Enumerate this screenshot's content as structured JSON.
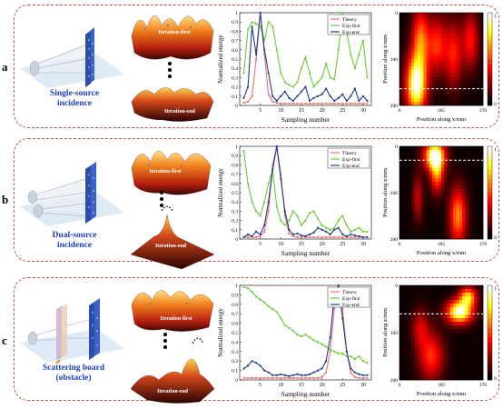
{
  "panels": [
    {
      "label": "a",
      "incidence": [
        "Single-source",
        "incidence"
      ],
      "iter_first": "Iteration-first",
      "iter_end": "Iteration-end"
    },
    {
      "label": "b",
      "incidence": [
        "Dual-source",
        "incidence"
      ],
      "iter_first": "Iteration-first",
      "iter_end": "Iteration-end"
    },
    {
      "label": "c",
      "incidence": [
        "Scattering board",
        "(obstacle)"
      ],
      "iter_first": "Iteration-first",
      "iter_end": "Iteration-end"
    }
  ],
  "colors": {
    "theory": "#e8736b",
    "exp_first": "#6ccb3a",
    "exp_end": "#1f3a8a",
    "border": "#c0504d",
    "incidence_text": "#1f3fbf"
  },
  "chart_data": [
    {
      "type": "line",
      "xlabel": "Sampling number",
      "ylabel": "Normalized energy",
      "xlim": [
        0,
        32
      ],
      "ylim": [
        0,
        1
      ],
      "xticks": [
        "5",
        "10",
        "15",
        "20",
        "25",
        "30"
      ],
      "yticks": [
        "0",
        "0.1",
        "0.2",
        "0.3",
        "0.4",
        "0.5",
        "0.6",
        "0.7",
        "0.8",
        "0.9",
        "1"
      ],
      "legend_position": "top-right",
      "series": [
        {
          "name": "Theory",
          "x": [
            1,
            2,
            3,
            4,
            5,
            6,
            7,
            8,
            9,
            10,
            11,
            12,
            13,
            14,
            15,
            16,
            17,
            18,
            19,
            20,
            21,
            22,
            23,
            24,
            25,
            26,
            27,
            28,
            29,
            30,
            31
          ],
          "values": [
            0.03,
            0.04,
            0.1,
            0.5,
            1.0,
            0.55,
            0.12,
            0.04,
            0.03,
            0.02,
            0.02,
            0.02,
            0.02,
            0.02,
            0.02,
            0.02,
            0.02,
            0.02,
            0.02,
            0.02,
            0.02,
            0.02,
            0.02,
            0.02,
            0.02,
            0.02,
            0.02,
            0.02,
            0.02,
            0.02,
            0.02
          ]
        },
        {
          "name": "Exp-first",
          "x": [
            1,
            2,
            3,
            4,
            5,
            6,
            7,
            8,
            9,
            10,
            11,
            12,
            13,
            14,
            15,
            16,
            17,
            18,
            19,
            20,
            21,
            22,
            23,
            24,
            25,
            26,
            27,
            28,
            29,
            30,
            31
          ],
          "values": [
            0.35,
            0.82,
            0.9,
            0.88,
            0.85,
            0.7,
            0.9,
            0.85,
            0.6,
            0.35,
            0.25,
            0.22,
            0.2,
            0.25,
            0.4,
            0.52,
            0.35,
            0.2,
            0.25,
            0.3,
            0.45,
            0.3,
            0.28,
            0.6,
            1.0,
            0.8,
            0.55,
            0.4,
            0.55,
            0.7,
            0.3
          ]
        },
        {
          "name": "Exp-end",
          "x": [
            1,
            2,
            3,
            4,
            5,
            6,
            7,
            8,
            9,
            10,
            11,
            12,
            13,
            14,
            15,
            16,
            17,
            18,
            19,
            20,
            21,
            22,
            23,
            24,
            25,
            26,
            27,
            28,
            29,
            30,
            31
          ],
          "values": [
            0.08,
            0.2,
            0.85,
            0.55,
            1.0,
            0.6,
            0.35,
            0.1,
            0.05,
            0.1,
            0.15,
            0.08,
            0.05,
            0.1,
            0.15,
            0.2,
            0.05,
            0.08,
            0.1,
            0.12,
            0.18,
            0.1,
            0.05,
            0.08,
            0.12,
            0.05,
            0.1,
            0.18,
            0.05,
            0.1,
            0.05
          ]
        }
      ]
    },
    {
      "type": "line",
      "xlabel": "Sampling number",
      "ylabel": "Normalized energy",
      "xlim": [
        0,
        32
      ],
      "ylim": [
        0,
        1
      ],
      "xticks": [
        "5",
        "10",
        "15",
        "20",
        "25",
        "30"
      ],
      "yticks": [
        "0",
        "0.1",
        "0.2",
        "0.3",
        "0.4",
        "0.5",
        "0.6",
        "0.7",
        "0.8",
        "0.9",
        "1"
      ],
      "legend_position": "top-right",
      "series": [
        {
          "name": "Theory",
          "x": [
            1,
            2,
            3,
            4,
            5,
            6,
            7,
            8,
            9,
            10,
            11,
            12,
            13,
            14,
            15,
            16,
            17,
            18,
            19,
            20,
            21,
            22,
            23,
            24,
            25,
            26,
            27,
            28,
            29,
            30,
            31
          ],
          "values": [
            0.02,
            0.02,
            0.02,
            0.02,
            0.03,
            0.08,
            0.3,
            0.8,
            1.0,
            0.7,
            0.25,
            0.06,
            0.03,
            0.02,
            0.02,
            0.02,
            0.02,
            0.02,
            0.02,
            0.02,
            0.02,
            0.02,
            0.02,
            0.02,
            0.02,
            0.02,
            0.02,
            0.02,
            0.02,
            0.02,
            0.02
          ]
        },
        {
          "name": "Exp-first",
          "x": [
            1,
            2,
            3,
            4,
            5,
            6,
            7,
            8,
            9,
            10,
            11,
            12,
            13,
            14,
            15,
            16,
            17,
            18,
            19,
            20,
            21,
            22,
            23,
            24,
            25,
            26,
            27,
            28,
            29,
            30,
            31
          ],
          "values": [
            0.95,
            0.6,
            0.4,
            0.3,
            0.25,
            0.4,
            0.6,
            0.75,
            0.35,
            0.2,
            0.15,
            0.2,
            0.3,
            0.25,
            0.15,
            0.2,
            0.28,
            0.3,
            0.22,
            0.15,
            0.12,
            0.1,
            0.12,
            0.2,
            0.25,
            0.15,
            0.08,
            0.1,
            0.12,
            0.08,
            0.08
          ]
        },
        {
          "name": "Exp-end",
          "x": [
            1,
            2,
            3,
            4,
            5,
            6,
            7,
            8,
            9,
            10,
            11,
            12,
            13,
            14,
            15,
            16,
            17,
            18,
            19,
            20,
            21,
            22,
            23,
            24,
            25,
            26,
            27,
            28,
            29,
            30,
            31
          ],
          "values": [
            0.02,
            0.05,
            0.03,
            0.08,
            0.05,
            0.15,
            0.4,
            0.75,
            1.0,
            0.65,
            0.3,
            0.1,
            0.05,
            0.06,
            0.04,
            0.03,
            0.05,
            0.07,
            0.12,
            0.1,
            0.08,
            0.05,
            0.1,
            0.12,
            0.05,
            0.03,
            0.05,
            0.04,
            0.03,
            0.02,
            0.02
          ]
        }
      ]
    },
    {
      "type": "line",
      "xlabel": "Sampling number",
      "ylabel": "Normalized energy",
      "xlim": [
        0,
        32
      ],
      "ylim": [
        0,
        1
      ],
      "xticks": [
        "5",
        "10",
        "15",
        "20",
        "25",
        "30"
      ],
      "yticks": [
        "0",
        "0.1",
        "0.2",
        "0.3",
        "0.4",
        "0.5",
        "0.6",
        "0.7",
        "0.8",
        "0.9",
        "1"
      ],
      "legend_position": "top-right",
      "series": [
        {
          "name": "Theory",
          "x": [
            1,
            2,
            3,
            4,
            5,
            6,
            7,
            8,
            9,
            10,
            11,
            12,
            13,
            14,
            15,
            16,
            17,
            18,
            19,
            20,
            21,
            22,
            23,
            24,
            25,
            26,
            27,
            28,
            29,
            30,
            31
          ],
          "values": [
            0.02,
            0.02,
            0.02,
            0.02,
            0.02,
            0.02,
            0.02,
            0.02,
            0.02,
            0.02,
            0.02,
            0.02,
            0.02,
            0.02,
            0.02,
            0.02,
            0.02,
            0.02,
            0.02,
            0.03,
            0.08,
            0.3,
            0.75,
            1.0,
            0.75,
            0.3,
            0.08,
            0.03,
            0.02,
            0.02,
            0.02
          ]
        },
        {
          "name": "Exp-first",
          "x": [
            1,
            2,
            3,
            4,
            5,
            6,
            7,
            8,
            9,
            10,
            11,
            12,
            13,
            14,
            15,
            16,
            17,
            18,
            19,
            20,
            21,
            22,
            23,
            24,
            25,
            26,
            27,
            28,
            29,
            30,
            31
          ],
          "values": [
            0.98,
            0.97,
            0.93,
            0.88,
            0.85,
            0.82,
            0.78,
            0.75,
            0.72,
            0.65,
            0.58,
            0.55,
            0.52,
            0.48,
            0.46,
            0.48,
            0.45,
            0.42,
            0.4,
            0.38,
            0.35,
            0.32,
            0.3,
            0.28,
            0.28,
            0.25,
            0.25,
            0.22,
            0.25,
            0.2,
            0.18
          ]
        },
        {
          "name": "Exp-end",
          "x": [
            1,
            2,
            3,
            4,
            5,
            6,
            7,
            8,
            9,
            10,
            11,
            12,
            13,
            14,
            15,
            16,
            17,
            18,
            19,
            20,
            21,
            22,
            23,
            24,
            25,
            26,
            27,
            28,
            29,
            30,
            31
          ],
          "values": [
            0.12,
            0.15,
            0.2,
            0.18,
            0.15,
            0.1,
            0.08,
            0.05,
            0.05,
            0.06,
            0.05,
            0.04,
            0.05,
            0.06,
            0.05,
            0.05,
            0.06,
            0.08,
            0.1,
            0.12,
            0.2,
            0.45,
            0.9,
            1.0,
            0.65,
            0.3,
            0.12,
            0.08,
            0.06,
            0.05,
            0.05
          ]
        }
      ]
    }
  ],
  "heatmaps": [
    {
      "xlabel": "Position along x/mm",
      "ylabel": "Position along z/mm",
      "xticks": [
        "0",
        "185",
        "370"
      ],
      "yticks": [
        "0",
        "100",
        "200"
      ],
      "colorbar_ticks": [
        "1",
        "0"
      ],
      "dashed_line_fraction": 0.82,
      "blobs": [
        {
          "x": 0.2,
          "y": 0.78,
          "rx": 0.12,
          "ry": 0.3,
          "v": 1.0
        },
        {
          "x": 0.25,
          "y": 0.3,
          "rx": 0.1,
          "ry": 0.35,
          "v": 0.55
        },
        {
          "x": 0.45,
          "y": 0.35,
          "rx": 0.12,
          "ry": 0.3,
          "v": 0.45
        },
        {
          "x": 0.65,
          "y": 0.45,
          "rx": 0.1,
          "ry": 0.35,
          "v": 0.4
        },
        {
          "x": 0.85,
          "y": 0.3,
          "rx": 0.1,
          "ry": 0.3,
          "v": 0.4
        }
      ]
    },
    {
      "xlabel": "Position along x/mm",
      "ylabel": "Position along z/mm",
      "xticks": [
        "0",
        "185",
        "370"
      ],
      "yticks": [
        "0",
        "100",
        "200"
      ],
      "colorbar_ticks": [
        "1",
        "0"
      ],
      "dashed_line_fraction": 0.15,
      "blobs": [
        {
          "x": 0.42,
          "y": 0.1,
          "rx": 0.12,
          "ry": 0.15,
          "v": 1.0
        },
        {
          "x": 0.45,
          "y": 0.3,
          "rx": 0.08,
          "ry": 0.2,
          "v": 0.55
        },
        {
          "x": 0.22,
          "y": 0.55,
          "rx": 0.06,
          "ry": 0.25,
          "v": 0.3
        },
        {
          "x": 0.7,
          "y": 0.75,
          "rx": 0.1,
          "ry": 0.3,
          "v": 0.6
        }
      ]
    },
    {
      "xlabel": "Position along x/mm",
      "ylabel": "Position along z/mm",
      "xticks": [
        "0",
        "185",
        "370"
      ],
      "yticks": [
        "0",
        "100",
        "200"
      ],
      "colorbar_ticks": [
        "1",
        "0"
      ],
      "dashed_line_fraction": 0.3,
      "blobs": [
        {
          "x": 0.72,
          "y": 0.28,
          "rx": 0.15,
          "ry": 0.12,
          "v": 1.0
        },
        {
          "x": 0.82,
          "y": 0.12,
          "rx": 0.1,
          "ry": 0.1,
          "v": 0.7
        },
        {
          "x": 0.38,
          "y": 0.75,
          "rx": 0.15,
          "ry": 0.25,
          "v": 0.45
        },
        {
          "x": 0.25,
          "y": 0.45,
          "rx": 0.1,
          "ry": 0.2,
          "v": 0.3
        }
      ]
    }
  ]
}
